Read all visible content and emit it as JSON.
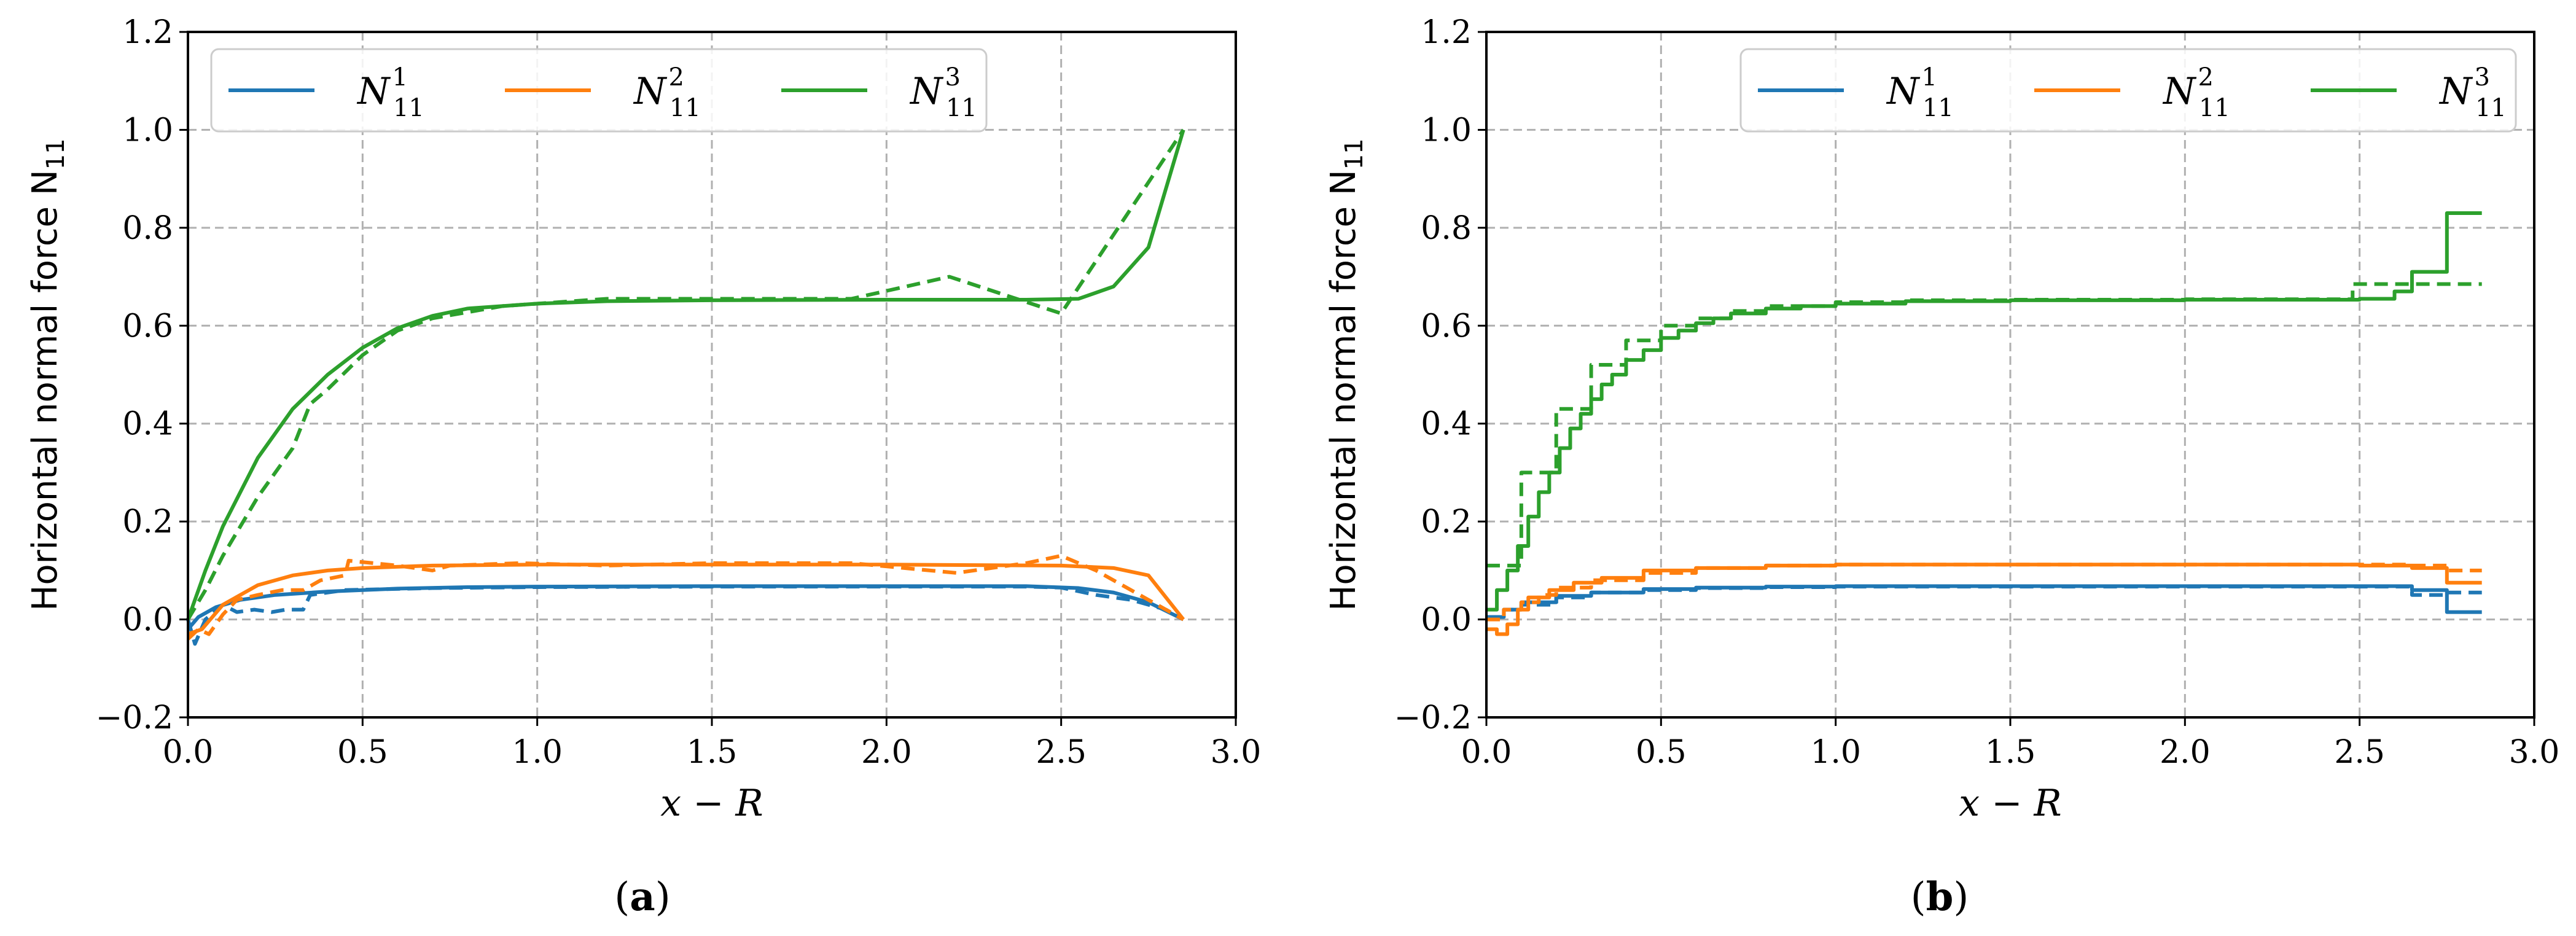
{
  "chart_data": [
    {
      "type": "line",
      "panel_label": "(a)",
      "caption_text": "a",
      "xlabel": "x − R",
      "ylabel": "Horizontal normal force N",
      "ylabel_sub": "11",
      "xlim": [
        0,
        3
      ],
      "ylim": [
        -0.2,
        1.2
      ],
      "xticks": [
        "0.0",
        "0.5",
        "1.0",
        "1.5",
        "2.0",
        "2.5",
        "3.0"
      ],
      "yticks": [
        "−0.2",
        "0.0",
        "0.2",
        "0.4",
        "0.6",
        "0.8",
        "1.0",
        "1.2"
      ],
      "grid": true,
      "legend_position": "top-left",
      "legend": [
        {
          "base": "N",
          "sup": "1",
          "sub": "11",
          "color": "#1f77b4"
        },
        {
          "base": "N",
          "sup": "2",
          "sub": "11",
          "color": "#ff7f0e"
        },
        {
          "base": "N",
          "sup": "3",
          "sub": "11",
          "color": "#2ca02c"
        }
      ],
      "series": [
        {
          "name": "N11^1",
          "style": "solid",
          "color": "#1f77b4",
          "x": [
            0,
            0.03,
            0.08,
            0.15,
            0.25,
            0.4,
            0.6,
            0.8,
            1.0,
            1.5,
            2.0,
            2.4,
            2.55,
            2.65,
            2.75,
            2.85
          ],
          "y": [
            -0.02,
            0.005,
            0.025,
            0.04,
            0.05,
            0.057,
            0.063,
            0.066,
            0.067,
            0.068,
            0.068,
            0.068,
            0.064,
            0.055,
            0.035,
            0.0
          ]
        },
        {
          "name": "N11^1 (dashed)",
          "style": "dashed",
          "color": "#1f77b4",
          "x": [
            0,
            0.02,
            0.05,
            0.1,
            0.14,
            0.19,
            0.24,
            0.28,
            0.33,
            0.35,
            0.45,
            0.7,
            1.0,
            1.5,
            2.0,
            2.4,
            2.5,
            2.6,
            2.7,
            2.8,
            2.85
          ],
          "y": [
            0,
            -0.05,
            0.0,
            0.03,
            0.015,
            0.02,
            0.015,
            0.02,
            0.02,
            0.05,
            0.06,
            0.064,
            0.066,
            0.067,
            0.067,
            0.067,
            0.065,
            0.05,
            0.04,
            0.02,
            0.0
          ]
        },
        {
          "name": "N11^2",
          "style": "solid",
          "color": "#ff7f0e",
          "x": [
            0,
            0.04,
            0.1,
            0.2,
            0.3,
            0.4,
            0.5,
            0.7,
            1.0,
            1.5,
            2.0,
            2.5,
            2.65,
            2.75,
            2.85
          ],
          "y": [
            -0.03,
            -0.02,
            0.03,
            0.07,
            0.09,
            0.1,
            0.105,
            0.11,
            0.112,
            0.112,
            0.112,
            0.11,
            0.105,
            0.09,
            0.0
          ]
        },
        {
          "name": "N11^2 (dashed)",
          "style": "dashed",
          "color": "#ff7f0e",
          "x": [
            0,
            0.03,
            0.06,
            0.1,
            0.14,
            0.2,
            0.27,
            0.33,
            0.38,
            0.45,
            0.46,
            0.6,
            0.7,
            0.75,
            0.95,
            1.2,
            1.5,
            1.9,
            2.2,
            2.4,
            2.5,
            2.6,
            2.7,
            2.85
          ],
          "y": [
            -0.04,
            -0.02,
            -0.03,
            0.01,
            0.04,
            0.05,
            0.06,
            0.06,
            0.08,
            0.09,
            0.12,
            0.11,
            0.1,
            0.11,
            0.115,
            0.11,
            0.115,
            0.115,
            0.095,
            0.115,
            0.13,
            0.1,
            0.06,
            0.0
          ]
        },
        {
          "name": "N11^3",
          "style": "solid",
          "color": "#2ca02c",
          "x": [
            0,
            0.05,
            0.1,
            0.2,
            0.3,
            0.4,
            0.5,
            0.6,
            0.7,
            0.8,
            1.0,
            1.2,
            1.5,
            2.0,
            2.4,
            2.55,
            2.65,
            2.75,
            2.85
          ],
          "y": [
            0,
            0.1,
            0.19,
            0.33,
            0.43,
            0.5,
            0.555,
            0.595,
            0.62,
            0.635,
            0.645,
            0.65,
            0.652,
            0.653,
            0.653,
            0.655,
            0.68,
            0.76,
            1.0
          ]
        },
        {
          "name": "N11^3 (dashed)",
          "style": "dashed",
          "color": "#2ca02c",
          "x": [
            0,
            0.05,
            0.1,
            0.2,
            0.3,
            0.35,
            0.4,
            0.5,
            0.6,
            0.7,
            0.9,
            1.2,
            1.5,
            1.9,
            2.18,
            2.5,
            2.85
          ],
          "y": [
            0,
            0.06,
            0.13,
            0.25,
            0.35,
            0.44,
            0.47,
            0.54,
            0.59,
            0.615,
            0.64,
            0.655,
            0.655,
            0.655,
            0.7,
            0.625,
            1.0
          ]
        }
      ]
    },
    {
      "type": "line",
      "panel_label": "(b)",
      "caption_text": "b",
      "xlabel": "x − R",
      "ylabel": "Horizontal normal force N",
      "ylabel_sub": "11",
      "xlim": [
        0,
        3
      ],
      "ylim": [
        -0.2,
        1.2
      ],
      "xticks": [
        "0.0",
        "0.5",
        "1.0",
        "1.5",
        "2.0",
        "2.5",
        "3.0"
      ],
      "yticks": [
        "−0.2",
        "0.0",
        "0.2",
        "0.4",
        "0.6",
        "0.8",
        "1.0",
        "1.2"
      ],
      "grid": true,
      "legend_position": "top-right",
      "legend": [
        {
          "base": "N",
          "sup": "1",
          "sub": "11",
          "color": "#1f77b4"
        },
        {
          "base": "N",
          "sup": "2",
          "sub": "11",
          "color": "#ff7f0e"
        },
        {
          "base": "N",
          "sup": "3",
          "sub": "11",
          "color": "#2ca02c"
        }
      ],
      "series": [
        {
          "name": "N11^1",
          "style": "solid",
          "color": "#1f77b4",
          "step": true,
          "x": [
            0,
            0.05,
            0.1,
            0.2,
            0.3,
            0.45,
            0.6,
            0.8,
            1.0,
            1.5,
            2.0,
            2.5,
            2.65,
            2.75,
            2.85
          ],
          "y": [
            0.005,
            0.02,
            0.035,
            0.048,
            0.055,
            0.062,
            0.065,
            0.067,
            0.068,
            0.068,
            0.068,
            0.068,
            0.06,
            0.015,
            0.015
          ]
        },
        {
          "name": "N11^1 (dashed)",
          "style": "dashed",
          "color": "#1f77b4",
          "step": true,
          "x": [
            0,
            0.05,
            0.1,
            0.2,
            0.3,
            0.45,
            0.6,
            0.8,
            1.0,
            1.5,
            2.0,
            2.48,
            2.65,
            2.75,
            2.85
          ],
          "y": [
            0.005,
            0.02,
            0.03,
            0.045,
            0.055,
            0.06,
            0.064,
            0.066,
            0.067,
            0.067,
            0.067,
            0.067,
            0.05,
            0.055,
            0.055
          ]
        },
        {
          "name": "N11^2",
          "style": "solid",
          "color": "#ff7f0e",
          "step": true,
          "x": [
            0,
            0.03,
            0.06,
            0.09,
            0.12,
            0.18,
            0.25,
            0.33,
            0.45,
            0.6,
            0.8,
            1.0,
            1.5,
            2.0,
            2.5,
            2.65,
            2.75,
            2.85
          ],
          "y": [
            -0.02,
            -0.03,
            -0.01,
            0.02,
            0.045,
            0.06,
            0.075,
            0.085,
            0.1,
            0.105,
            0.11,
            0.112,
            0.112,
            0.112,
            0.11,
            0.105,
            0.075,
            0.075
          ]
        },
        {
          "name": "N11^2 (dashed)",
          "style": "dashed",
          "color": "#ff7f0e",
          "step": true,
          "x": [
            0,
            0.05,
            0.1,
            0.15,
            0.2,
            0.3,
            0.45,
            0.6,
            0.8,
            1.0,
            1.5,
            2.0,
            2.48,
            2.65,
            2.75,
            2.85
          ],
          "y": [
            0.0,
            0.02,
            0.035,
            0.05,
            0.065,
            0.08,
            0.095,
            0.105,
            0.11,
            0.112,
            0.112,
            0.112,
            0.112,
            0.11,
            0.1,
            0.1
          ]
        },
        {
          "name": "N11^3",
          "style": "solid",
          "color": "#2ca02c",
          "step": true,
          "x": [
            0,
            0.03,
            0.06,
            0.09,
            0.12,
            0.15,
            0.18,
            0.21,
            0.24,
            0.27,
            0.3,
            0.33,
            0.36,
            0.4,
            0.45,
            0.5,
            0.55,
            0.6,
            0.65,
            0.7,
            0.8,
            0.9,
            1.0,
            1.2,
            1.5,
            2.0,
            2.5,
            2.6,
            2.65,
            2.75,
            2.85
          ],
          "y": [
            0.02,
            0.06,
            0.1,
            0.15,
            0.21,
            0.26,
            0.3,
            0.35,
            0.39,
            0.42,
            0.45,
            0.48,
            0.5,
            0.53,
            0.55,
            0.575,
            0.59,
            0.605,
            0.615,
            0.625,
            0.635,
            0.64,
            0.645,
            0.65,
            0.652,
            0.653,
            0.655,
            0.67,
            0.71,
            0.83,
            0.83
          ]
        },
        {
          "name": "N11^3 (dashed)",
          "style": "dashed",
          "color": "#2ca02c",
          "step": true,
          "x": [
            0,
            0.05,
            0.1,
            0.15,
            0.2,
            0.25,
            0.3,
            0.35,
            0.4,
            0.45,
            0.5,
            0.6,
            0.7,
            0.8,
            1.0,
            1.2,
            1.5,
            2.0,
            2.48,
            2.65,
            2.75,
            2.85
          ],
          "y": [
            0.11,
            0.11,
            0.3,
            0.3,
            0.43,
            0.43,
            0.52,
            0.52,
            0.57,
            0.57,
            0.6,
            0.615,
            0.63,
            0.64,
            0.648,
            0.652,
            0.653,
            0.654,
            0.685,
            0.685,
            0.685,
            0.685
          ]
        }
      ]
    }
  ]
}
